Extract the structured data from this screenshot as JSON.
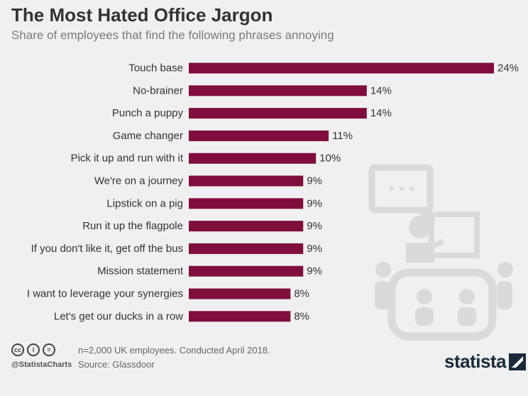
{
  "title": "The Most Hated Office Jargon",
  "subtitle": "Share of employees that find the following phrases annoying",
  "chart_data": {
    "type": "bar",
    "orientation": "horizontal",
    "categories": [
      "Touch base",
      "No-brainer",
      "Punch a puppy",
      "Game changer",
      "Pick it up and run with it",
      "We're on a journey",
      "Lipstick on a pig",
      "Run it up the flagpole",
      "If you don't like it, get off the bus",
      "Mission statement",
      "I want to leverage your synergies",
      "Let's get our ducks in a row"
    ],
    "values": [
      24,
      14,
      14,
      11,
      10,
      9,
      9,
      9,
      9,
      9,
      8,
      8
    ],
    "value_labels": [
      "24%",
      "14%",
      "14%",
      "11%",
      "10%",
      "9%",
      "9%",
      "9%",
      "9%",
      "9%",
      "8%",
      "8%"
    ],
    "unit": "%",
    "bar_color": "#7f0e3d",
    "grid": false,
    "legend": "none"
  },
  "footer": {
    "note": "n=2,000 UK employees. Conducted April 2018.",
    "source": "Source: Glassdoor",
    "handle": "@StatistaCharts",
    "cc_icons": [
      "cc-icon",
      "person-icon",
      "equals-icon"
    ],
    "cc_glyphs": [
      "cc",
      "i",
      "="
    ]
  },
  "brand": {
    "name": "statista"
  }
}
